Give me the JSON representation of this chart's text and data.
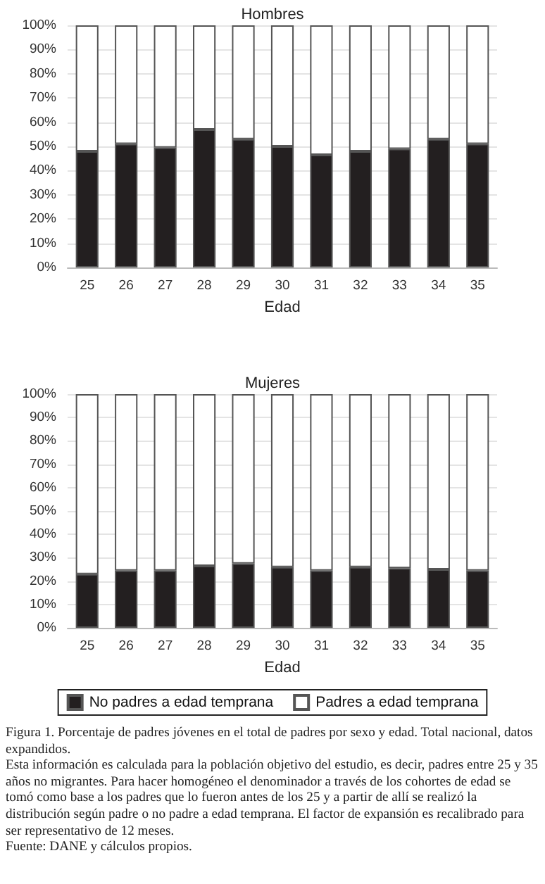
{
  "chart_data": [
    {
      "type": "bar",
      "stacked": true,
      "title": "Hombres",
      "xlabel": "Edad",
      "categories": [
        "25",
        "26",
        "27",
        "28",
        "29",
        "30",
        "31",
        "32",
        "33",
        "34",
        "35"
      ],
      "series": [
        {
          "color": "#231f20",
          "values": [
            48,
            51,
            49.5,
            57,
            53,
            50,
            46.5,
            48,
            49,
            53,
            51
          ]
        },
        {
          "color": "#ffffff",
          "values": [
            52,
            49,
            50.5,
            43,
            47,
            50,
            53.5,
            52,
            51,
            47,
            49
          ]
        }
      ],
      "ylim": [
        0,
        100
      ],
      "yticks": [
        {
          "value": 0,
          "label": "0%"
        },
        {
          "value": 10,
          "label": "10%"
        },
        {
          "value": 20,
          "label": "20%"
        },
        {
          "value": 30,
          "label": "30%"
        },
        {
          "value": 40,
          "label": "40%"
        },
        {
          "value": 50,
          "label": "50%"
        },
        {
          "value": 60,
          "label": "60%"
        },
        {
          "value": 70,
          "label": "70%"
        },
        {
          "value": 80,
          "label": "80%"
        },
        {
          "value": 90,
          "label": "90%"
        },
        {
          "value": 100,
          "label": "100%"
        }
      ],
      "grid": "y",
      "legend": false
    },
    {
      "type": "bar",
      "stacked": true,
      "title": "Mujeres",
      "xlabel": "Edad",
      "categories": [
        "25",
        "26",
        "27",
        "28",
        "29",
        "30",
        "31",
        "32",
        "33",
        "34",
        "35"
      ],
      "series": [
        {
          "name": "No padres a edad temprana",
          "color": "#231f20",
          "values": [
            23,
            24.5,
            24.5,
            26.5,
            27.5,
            26,
            24.5,
            26,
            25.5,
            25,
            24.5
          ]
        },
        {
          "name": "Padres a edad temprana",
          "color": "#ffffff",
          "values": [
            77,
            75.5,
            75.5,
            73.5,
            72.5,
            74,
            75.5,
            74,
            74.5,
            75,
            75.5
          ]
        }
      ],
      "ylim": [
        0,
        100
      ],
      "yticks": [
        {
          "value": 0,
          "label": "0%"
        },
        {
          "value": 10,
          "label": "10%"
        },
        {
          "value": 20,
          "label": "20%"
        },
        {
          "value": 30,
          "label": "30%"
        },
        {
          "value": 40,
          "label": "40%"
        },
        {
          "value": 50,
          "label": "50%"
        },
        {
          "value": 60,
          "label": "60%"
        },
        {
          "value": 70,
          "label": "70%"
        },
        {
          "value": 80,
          "label": "80%"
        },
        {
          "value": 90,
          "label": "90%"
        },
        {
          "value": 100,
          "label": "100%"
        }
      ],
      "grid": "y",
      "legend": "bottom",
      "annotations": [
        "Figura 1. Porcentaje de padres jóvenes en el total de padres por sexo y edad. Total nacional, datos expandidos.",
        "Esta información es calculada para la población objetivo del estudio, es decir, padres entre 25 y 35 años no migrantes. Para hacer homogéneo el denominador a través de los cohortes de edad se tomó como base a los padres que lo fueron antes de los 25 y a partir de allí se realizó la distribución según padre o no padre a edad temprana. El factor de expansión es recalibrado para ser representativo de 12 meses.",
        "Fuente: DANE y cálculos propios."
      ]
    }
  ]
}
